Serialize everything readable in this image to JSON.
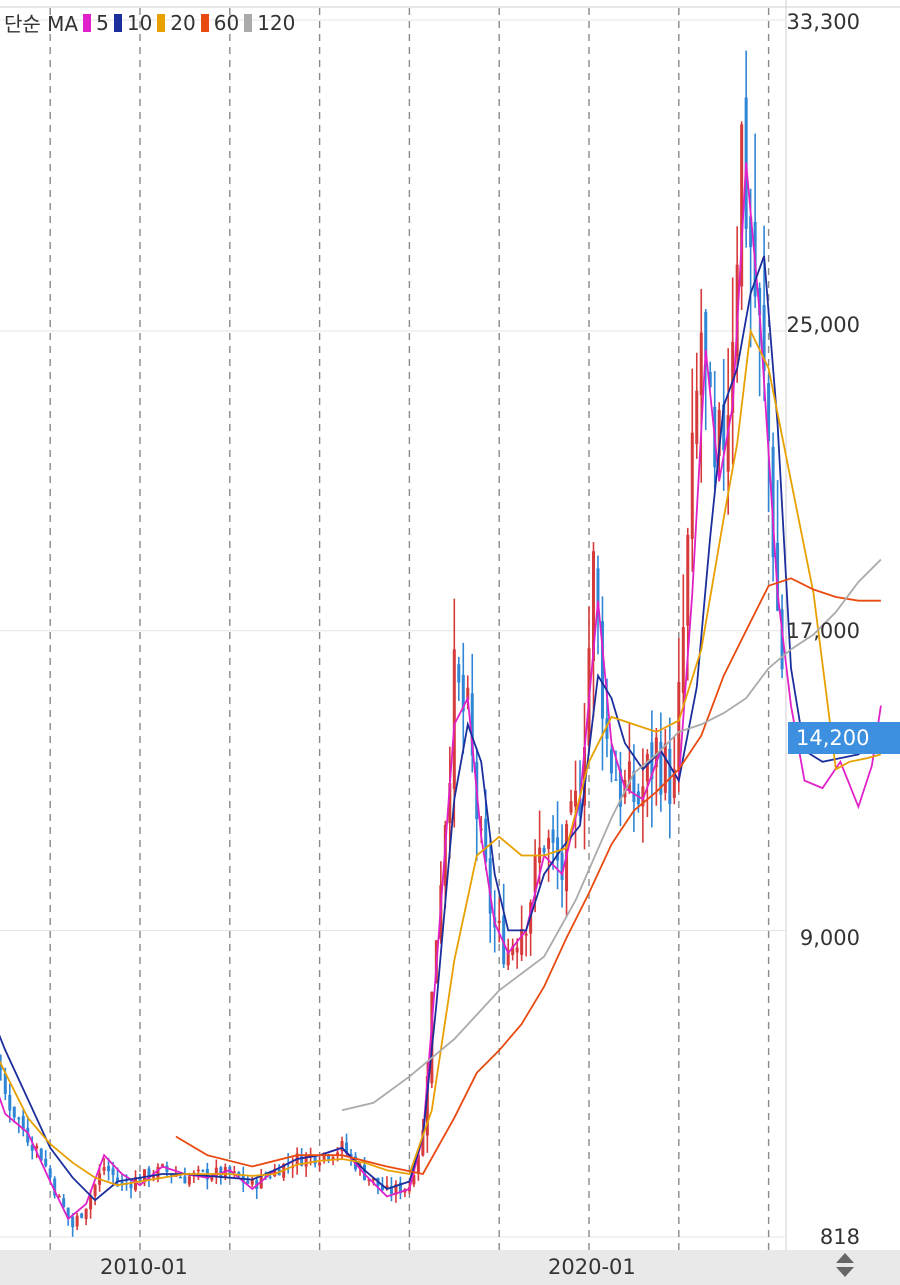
{
  "legend": {
    "type_label": "단순 MA",
    "items": [
      {
        "period": "5",
        "color": "#e020c8"
      },
      {
        "period": "10",
        "color": "#1b2e9c"
      },
      {
        "period": "20",
        "color": "#e8a000"
      },
      {
        "period": "60",
        "color": "#e84a10"
      },
      {
        "period": "120",
        "color": "#aaaaaa"
      }
    ]
  },
  "current_price": {
    "label": "14,200",
    "value": 14200,
    "color": "#3d8fe0"
  },
  "chart_data": {
    "type": "candlestick",
    "y_ticks": [
      "33,300",
      "25,000",
      "17,000",
      "9,000",
      "818"
    ],
    "y_tick_values": [
      33300,
      25000,
      17000,
      9000,
      818
    ],
    "ylim": [
      818,
      33300
    ],
    "x_tick_labels": [
      "2010-01",
      "2020-01"
    ],
    "up_color": "#d63a3a",
    "down_color": "#2f86d6",
    "moving_averages": [
      {
        "name": "5",
        "color": "#e020c8",
        "points": [
          [
            2005.2,
            8500
          ],
          [
            2006,
            8200
          ],
          [
            2006.5,
            5800
          ],
          [
            2007,
            4100
          ],
          [
            2007.5,
            3600
          ],
          [
            2008,
            2300
          ],
          [
            2008.4,
            1300
          ],
          [
            2008.8,
            1700
          ],
          [
            2009.2,
            3000
          ],
          [
            2009.6,
            2500
          ],
          [
            2010,
            2200
          ],
          [
            2010.5,
            2700
          ],
          [
            2011,
            2500
          ],
          [
            2011.5,
            2400
          ],
          [
            2012,
            2600
          ],
          [
            2012.5,
            2100
          ],
          [
            2013,
            2600
          ],
          [
            2013.5,
            2900
          ],
          [
            2014,
            3000
          ],
          [
            2014.5,
            3200
          ],
          [
            2015,
            2500
          ],
          [
            2015.5,
            1900
          ],
          [
            2016,
            2100
          ],
          [
            2016.3,
            3500
          ],
          [
            2016.6,
            8000
          ],
          [
            2017,
            14500
          ],
          [
            2017.3,
            15200
          ],
          [
            2017.6,
            11500
          ],
          [
            2017.9,
            9200
          ],
          [
            2018.2,
            8400
          ],
          [
            2018.6,
            9000
          ],
          [
            2019,
            11000
          ],
          [
            2019.4,
            10500
          ],
          [
            2019.8,
            12500
          ],
          [
            2020.2,
            17800
          ],
          [
            2020.5,
            14000
          ],
          [
            2020.8,
            12800
          ],
          [
            2021.2,
            12500
          ],
          [
            2021.6,
            13800
          ],
          [
            2022,
            13000
          ],
          [
            2022.3,
            18000
          ],
          [
            2022.6,
            24500
          ],
          [
            2022.9,
            21000
          ],
          [
            2023.2,
            23000
          ],
          [
            2023.5,
            29500
          ],
          [
            2023.8,
            25500
          ],
          [
            2024.2,
            18000
          ],
          [
            2024.5,
            15000
          ],
          [
            2024.8,
            13000
          ],
          [
            2025.2,
            12800
          ],
          [
            2025.6,
            13500
          ],
          [
            2026,
            12300
          ],
          [
            2026.3,
            13400
          ],
          [
            2026.5,
            15000
          ]
        ]
      },
      {
        "name": "10",
        "color": "#1b2e9c",
        "points": [
          [
            2005.5,
            8500
          ],
          [
            2006,
            8300
          ],
          [
            2006.5,
            7300
          ],
          [
            2007,
            5800
          ],
          [
            2007.5,
            4500
          ],
          [
            2008,
            3200
          ],
          [
            2008.5,
            2400
          ],
          [
            2009,
            1800
          ],
          [
            2009.5,
            2300
          ],
          [
            2010,
            2400
          ],
          [
            2010.5,
            2500
          ],
          [
            2011,
            2500
          ],
          [
            2011.5,
            2450
          ],
          [
            2012,
            2400
          ],
          [
            2012.5,
            2350
          ],
          [
            2013,
            2600
          ],
          [
            2013.5,
            2900
          ],
          [
            2014,
            3000
          ],
          [
            2014.5,
            3200
          ],
          [
            2015,
            2600
          ],
          [
            2015.5,
            2100
          ],
          [
            2016,
            2300
          ],
          [
            2016.3,
            3500
          ],
          [
            2016.6,
            7000
          ],
          [
            2017,
            12500
          ],
          [
            2017.3,
            14500
          ],
          [
            2017.6,
            13500
          ],
          [
            2017.9,
            10500
          ],
          [
            2018.2,
            9000
          ],
          [
            2018.6,
            9000
          ],
          [
            2019,
            10500
          ],
          [
            2019.4,
            11200
          ],
          [
            2019.8,
            11800
          ],
          [
            2020.2,
            15800
          ],
          [
            2020.5,
            15200
          ],
          [
            2020.8,
            14000
          ],
          [
            2021.2,
            13300
          ],
          [
            2021.6,
            13800
          ],
          [
            2022,
            13000
          ],
          [
            2022.4,
            15500
          ],
          [
            2022.7,
            19500
          ],
          [
            2023,
            23000
          ],
          [
            2023.3,
            24000
          ],
          [
            2023.6,
            26000
          ],
          [
            2023.9,
            27000
          ],
          [
            2024.2,
            22500
          ],
          [
            2024.5,
            16000
          ],
          [
            2024.8,
            13800
          ],
          [
            2025.2,
            13500
          ],
          [
            2025.6,
            13600
          ],
          [
            2026,
            13700
          ],
          [
            2026.3,
            14000
          ],
          [
            2026.5,
            14000
          ]
        ]
      },
      {
        "name": "20",
        "color": "#e8a000",
        "points": [
          [
            2006.3,
            6900
          ],
          [
            2007,
            5200
          ],
          [
            2007.5,
            4000
          ],
          [
            2008,
            3300
          ],
          [
            2008.5,
            2800
          ],
          [
            2009,
            2400
          ],
          [
            2009.5,
            2200
          ],
          [
            2010,
            2300
          ],
          [
            2010.5,
            2400
          ],
          [
            2011,
            2500
          ],
          [
            2011.5,
            2500
          ],
          [
            2012,
            2500
          ],
          [
            2012.5,
            2450
          ],
          [
            2013,
            2500
          ],
          [
            2013.5,
            2750
          ],
          [
            2014,
            2850
          ],
          [
            2014.5,
            2900
          ],
          [
            2015,
            2800
          ],
          [
            2015.5,
            2600
          ],
          [
            2016,
            2500
          ],
          [
            2016.5,
            4200
          ],
          [
            2017,
            8200
          ],
          [
            2017.5,
            11000
          ],
          [
            2018,
            11500
          ],
          [
            2018.5,
            11000
          ],
          [
            2019,
            11000
          ],
          [
            2019.5,
            11200
          ],
          [
            2020,
            13500
          ],
          [
            2020.5,
            14700
          ],
          [
            2021,
            14500
          ],
          [
            2021.5,
            14300
          ],
          [
            2022,
            14600
          ],
          [
            2022.5,
            16500
          ],
          [
            2023,
            20000
          ],
          [
            2023.3,
            22000
          ],
          [
            2023.6,
            25000
          ],
          [
            2024,
            24000
          ],
          [
            2024.5,
            21000
          ],
          [
            2025,
            18000
          ],
          [
            2025.5,
            13300
          ],
          [
            2025.8,
            13500
          ],
          [
            2026.2,
            13600
          ],
          [
            2026.5,
            13700
          ]
        ]
      },
      {
        "name": "60",
        "color": "#e84a10",
        "points": [
          [
            2010.8,
            3500
          ],
          [
            2011.5,
            3000
          ],
          [
            2012.5,
            2700
          ],
          [
            2013.5,
            3000
          ],
          [
            2014.5,
            3000
          ],
          [
            2015.5,
            2700
          ],
          [
            2016.3,
            2500
          ],
          [
            2017,
            4000
          ],
          [
            2017.5,
            5200
          ],
          [
            2018,
            5800
          ],
          [
            2018.5,
            6500
          ],
          [
            2019,
            7500
          ],
          [
            2019.5,
            8800
          ],
          [
            2020,
            10000
          ],
          [
            2020.5,
            11300
          ],
          [
            2021,
            12200
          ],
          [
            2021.5,
            12700
          ],
          [
            2022,
            13300
          ],
          [
            2022.5,
            14200
          ],
          [
            2023,
            15800
          ],
          [
            2023.5,
            17000
          ],
          [
            2024,
            18200
          ],
          [
            2024.5,
            18400
          ],
          [
            2025,
            18100
          ],
          [
            2025.5,
            17900
          ],
          [
            2026,
            17800
          ],
          [
            2026.5,
            17800
          ]
        ]
      },
      {
        "name": "120",
        "color": "#aaaaaa",
        "points": [
          [
            2014.5,
            4200
          ],
          [
            2015.2,
            4400
          ],
          [
            2016,
            5100
          ],
          [
            2017,
            6100
          ],
          [
            2018,
            7400
          ],
          [
            2019,
            8300
          ],
          [
            2019.7,
            9800
          ],
          [
            2020.5,
            12000
          ],
          [
            2021,
            13200
          ],
          [
            2021.5,
            13700
          ],
          [
            2022,
            14300
          ],
          [
            2022.5,
            14500
          ],
          [
            2023,
            14800
          ],
          [
            2023.5,
            15200
          ],
          [
            2024,
            16000
          ],
          [
            2024.5,
            16500
          ],
          [
            2025,
            16900
          ],
          [
            2025.5,
            17500
          ],
          [
            2026,
            18300
          ],
          [
            2026.5,
            18900
          ]
        ]
      }
    ]
  }
}
